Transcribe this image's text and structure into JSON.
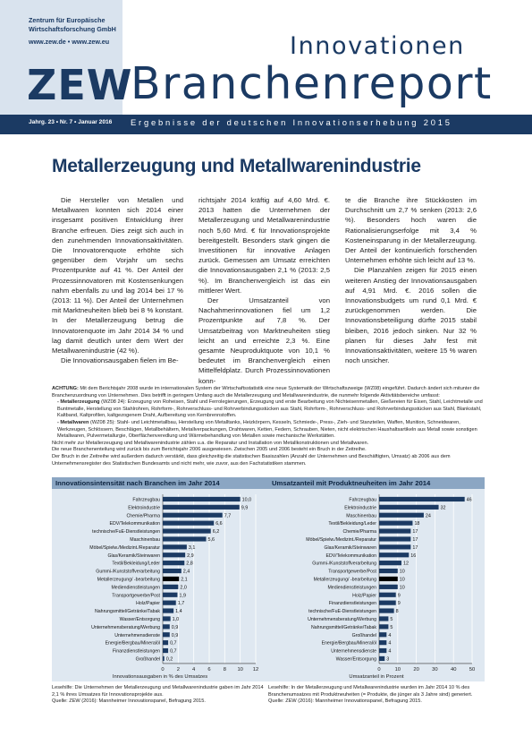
{
  "header": {
    "org_line1": "Zentrum für Europäische",
    "org_line2": "Wirtschaftsforschung GmbH",
    "web": "www.zew.de • www.zew.eu",
    "logo": "ZEW",
    "series": "Innovationen",
    "report": "Branchenreport",
    "issue": "Jahrg. 23 • Nr. 7 • Januar 2016",
    "subtitle": "Ergebnisse der deutschen Innovationserhebung 2015"
  },
  "article": {
    "title": "Metallerzeugung und Metallwarenindustrie",
    "col1_p1": "Die Hersteller von Metallen und Metallwaren konnten sich 2014 einer insgesamt positiven Entwicklung ihrer Branche erfreuen. Dies zeigt sich auch in den zunehmenden Innovationsaktivitäten. Die Innovatorenquote erhöhte sich gegenüber dem Vorjahr um sechs Prozentpunkte auf 41 %. Der Anteil der Prozessinnovatoren mit Kostensenkungen nahm ebenfalls zu und lag 2014 bei 17 % (2013: 11 %). Der Anteil der Unternehmen mit Marktneuheiten blieb bei 8 % konstant. In der Metallerzeugung betrug die Innovatorenquote im Jahr 2014 34 % und lag damit deutlich unter dem Wert der Metallwarenindustrie (42 %).",
    "col1_p2": "Die Innovationsausgaben fielen im Be-",
    "col2_p1": "richtsjahr 2014 kräftig auf 4,60 Mrd. €. 2013 hatten die Unternehmen der Metallerzeugung und Metallwarenindustrie noch 5,60 Mrd. € für Innovationsprojekte bereitgestellt. Besonders stark gingen die Investitionen für innovative Anlagen zurück. Gemessen am Umsatz erreichten die Innovationsausgaben 2,1 % (2013: 2,5 %). Im Branchenvergleich ist das ein mittlerer Wert.",
    "col2_p2": "Der Umsatzanteil von Nachahmerinnovationen fiel um 1,2 Prozentpunkte auf 7,8 %. Der Umsatzbeitrag von Marktneuheiten stieg leicht an und erreichte 2,3 %. Eine gesamte Neuproduktquote von 10,1 % bedeutet im Branchenvergleich einen Mittelfeldplatz. Durch Prozessinnovationen konn-",
    "col3_p1": "te die Branche ihre Stückkosten im Durchschnitt um 2,7 % senken (2013: 2,6 %). Besonders hoch waren die Rationalisierungserfolge mit 3,4 % Kosteneinsparung in der Metallerzeugung. Der Anteil der kontinuierlich forschenden Unternehmen erhöhte sich leicht auf 13 %.",
    "col3_p2": "Die Planzahlen zeigen für 2015 einen weiteren Anstieg der Innovationsausgaben auf 4,91 Mrd. €. 2016 sollen die Innovationsbudgets um rund 0,1 Mrd. € zurückgenommen werden. Die Innovationsbeteiligung dürfte 2015 stabil bleiben, 2016 jedoch sinken. Nur 32 % planen für dieses Jahr fest mit Innovationsaktivitäten, weitere 15 % waren noch unsicher."
  },
  "note": {
    "label": "ACHTUNG:",
    "text1": "Mit dem Berichtsjahr 2008 wurde im internationalen System der Wirtschaftsstatistik eine neue Systematik der Wirtschaftszweige (WZ08) eingeführt. Dadurch ändert sich mitunter die Branchenzuordnung von Unternehmen. Dies betrifft in geringem Umfang auch die Metallerzeugung und Metallwarenindustrie, die nunmehr folgende Aktivitätsbereiche umfasst:",
    "item1_label": "- Metallerzeugung",
    "item1": "(WZ08 24): Erzeugung von Roheisen, Stahl und Ferrolegierungen, Erzeugung und erste Bearbeitung von Nichteisenmetallen, Gießereien für Eisen, Stahl, Leichtmetalle und Buntmetalle, Herstellung von Stahlrohren, Rohrform-, Rohrverschluss- und Rohrverbindungsstücken aus Stahl, Rohrform-, Rohrverschluss- und Rohrverbindungsstücken aus Stahl, Blankstahl, Kaltband, Kaltprofilen, kaltgezogenem Draht, Aufbereitung von Kernbrennstoffen.",
    "item2_label": "- Metallwaren",
    "item2": "(WZ08 25): Stahl- und Leichtmetallbau, Herstellung von Metalltanks, Heizkörpern, Kesseln, Schmiede-, Press-, Zieh- und Stanzteilen, Waffen, Munition, Schneidwaren, Werkzeugen, Schlössern, Beschlägen, Metallbehältern, Metallverpackungen, Drahtwaren, Ketten, Federn, Schrauben, Nieten, nicht elektrischen Haushaltsartikeln aus Metall sowie sonstigen Metallwaren, Pulvermetallurgie, Oberflächenveredlung und Wärmebehandlung von Metallen sowie mechanische Werkstätten.",
    "text2": "Nicht mehr zur Metallerzeugung und Metallwarenindustrie zählen u.a. die Reparatur und Installation von Metallkonstruktionen und Metallwaren.",
    "text3": "Die neue Branchenenteilung wird zurück bis zum Berichtsjahr 2006 ausgewiesen. Zwischen 2005 und 2006 besteht ein Bruch in der Zeitreihe.",
    "text4": "Der Bruch in der Zeitreihe wird außerdem dadurch verstärkt, dass gleichzeitig die statistischen Basiszahlen (Anzahl der Unternehmen und Beschäftigten, Umsatz) ab 2006 aus dem Unternehmensregister des Statistischen Bundesamts und nicht mehr, wie zuvor, aus den Fachstatistiken stammen."
  },
  "chart_data": [
    {
      "type": "bar",
      "orientation": "horizontal",
      "title": "Innovationsintensität nach Branchen im Jahr 2014",
      "xlabel": "Innovationsausgaben in % des Umsatzes",
      "xlim": [
        0,
        12
      ],
      "xticks": [
        "0",
        "2",
        "4",
        "6",
        "8",
        "10",
        "12"
      ],
      "highlight": "Metallerzeugung/ -bearbeitung",
      "colors": {
        "bar": "#1b3a63",
        "highlight": "#000000",
        "grid": "#ffffff"
      },
      "categories": [
        "Fahrzeugbau",
        "Elektroindustrie",
        "Chemie/Pharma",
        "EDV/Telekommunikation",
        "technische/FuE-Dienstleistungen",
        "Maschinenbau",
        "Möbel/Spielw./Medizint./Reparatur",
        "Glas/Keramik/Steinwaren",
        "Textil/Bekleidung/Leder",
        "Gummi-/Kunststoffverarbeitung",
        "Metallerzeugung/ -bearbeitung",
        "Mediendienstleistungen",
        "Transportgewerbe/Post",
        "Holz/Papier",
        "Nahrungsmittel/Getränke/Tabak",
        "Wasser/Entsorgung",
        "Unternehmensberatung/Werbung",
        "Unternehmensdienste",
        "Energie/Bergbau/Mineralöl",
        "Finanzdienstleistungen",
        "Großhandel"
      ],
      "values": [
        10.0,
        9.9,
        7.7,
        6.6,
        6.2,
        5.6,
        3.1,
        2.9,
        2.8,
        2.4,
        2.1,
        2.0,
        1.9,
        1.7,
        1.4,
        1.0,
        0.9,
        0.9,
        0.7,
        0.7,
        0.2
      ],
      "value_labels": [
        "10,0",
        "9,9",
        "7,7",
        "6,6",
        "6,2",
        "5,6",
        "3,1",
        "2,9",
        "2,8",
        "2,4",
        "2,1",
        "2,0",
        "1,9",
        "1,7",
        "1,4",
        "1,0",
        "0,9",
        "0,9",
        "0,7",
        "0,7",
        "0,2"
      ]
    },
    {
      "type": "bar",
      "orientation": "horizontal",
      "title": "Umsatzanteil mit Produktneuheiten im Jahr 2014",
      "xlabel": "Umsatzanteil in Prozent",
      "xlim": [
        0,
        50
      ],
      "xticks": [
        "0",
        "10",
        "20",
        "30",
        "40",
        "50"
      ],
      "highlight": "Metallerzeugung/ -bearbeitung",
      "colors": {
        "bar": "#1b3a63",
        "highlight": "#000000",
        "grid": "#ffffff"
      },
      "categories": [
        "Fahrzeugbau",
        "Elektroindustrie",
        "Maschinenbau",
        "Textil/Bekleidung/Leder",
        "Chemie/Pharma",
        "Möbel/Spielw./Medizint./Reparatur",
        "Glas/Keramik/Steinwaren",
        "EDV/Telekommunikation",
        "Gummi-/Kunststoffverarbeitung",
        "Transportgewerbe/Post",
        "Metallerzeugung/ -bearbeitung",
        "Mediendienstleistungen",
        "Holz/Papier",
        "Finanzdienstleistungen",
        "technische/FuE-Dienstleistungen",
        "Unternehmensberatung/Werbung",
        "Nahrungsmittel/Getränke/Tabak",
        "Großhandel",
        "Energie/Bergbau/Mineralöl",
        "Unternehmensdienste",
        "Wasser/Entsorgung"
      ],
      "values": [
        46,
        32,
        24,
        18,
        17,
        17,
        17,
        16,
        12,
        10,
        10,
        10,
        9,
        9,
        8,
        5,
        5,
        4,
        4,
        4,
        3
      ],
      "value_labels": [
        "46",
        "32",
        "24",
        "18",
        "17",
        "17",
        "17",
        "16",
        "12",
        "10",
        "10",
        "10",
        "9",
        "9",
        "8",
        "5",
        "5",
        "4",
        "4",
        "4",
        "3"
      ]
    }
  ],
  "chart_notes": {
    "left": "Lesehilfe: Die Unternehmen der Metallerzeugung und Metallwarenindustrie gaben im Jahr 2014 2,1 % ihres Umsatzes für Innovationsprojekte aus.",
    "left_source": "Quelle: ZEW (2016): Mannheimer Innovationspanel, Befragung 2015.",
    "right": "Lesehilfe: In der Metallerzeugung und Metallwarenindustrie wurden im Jahr 2014 10 % des Branchenumsatzes mit Produktneuheiten (= Produkte, die jünger als 3 Jahre sind) generiert.",
    "right_source": "Quelle: ZEW (2016): Mannheimer Innovationspanel, Befragung 2015."
  }
}
